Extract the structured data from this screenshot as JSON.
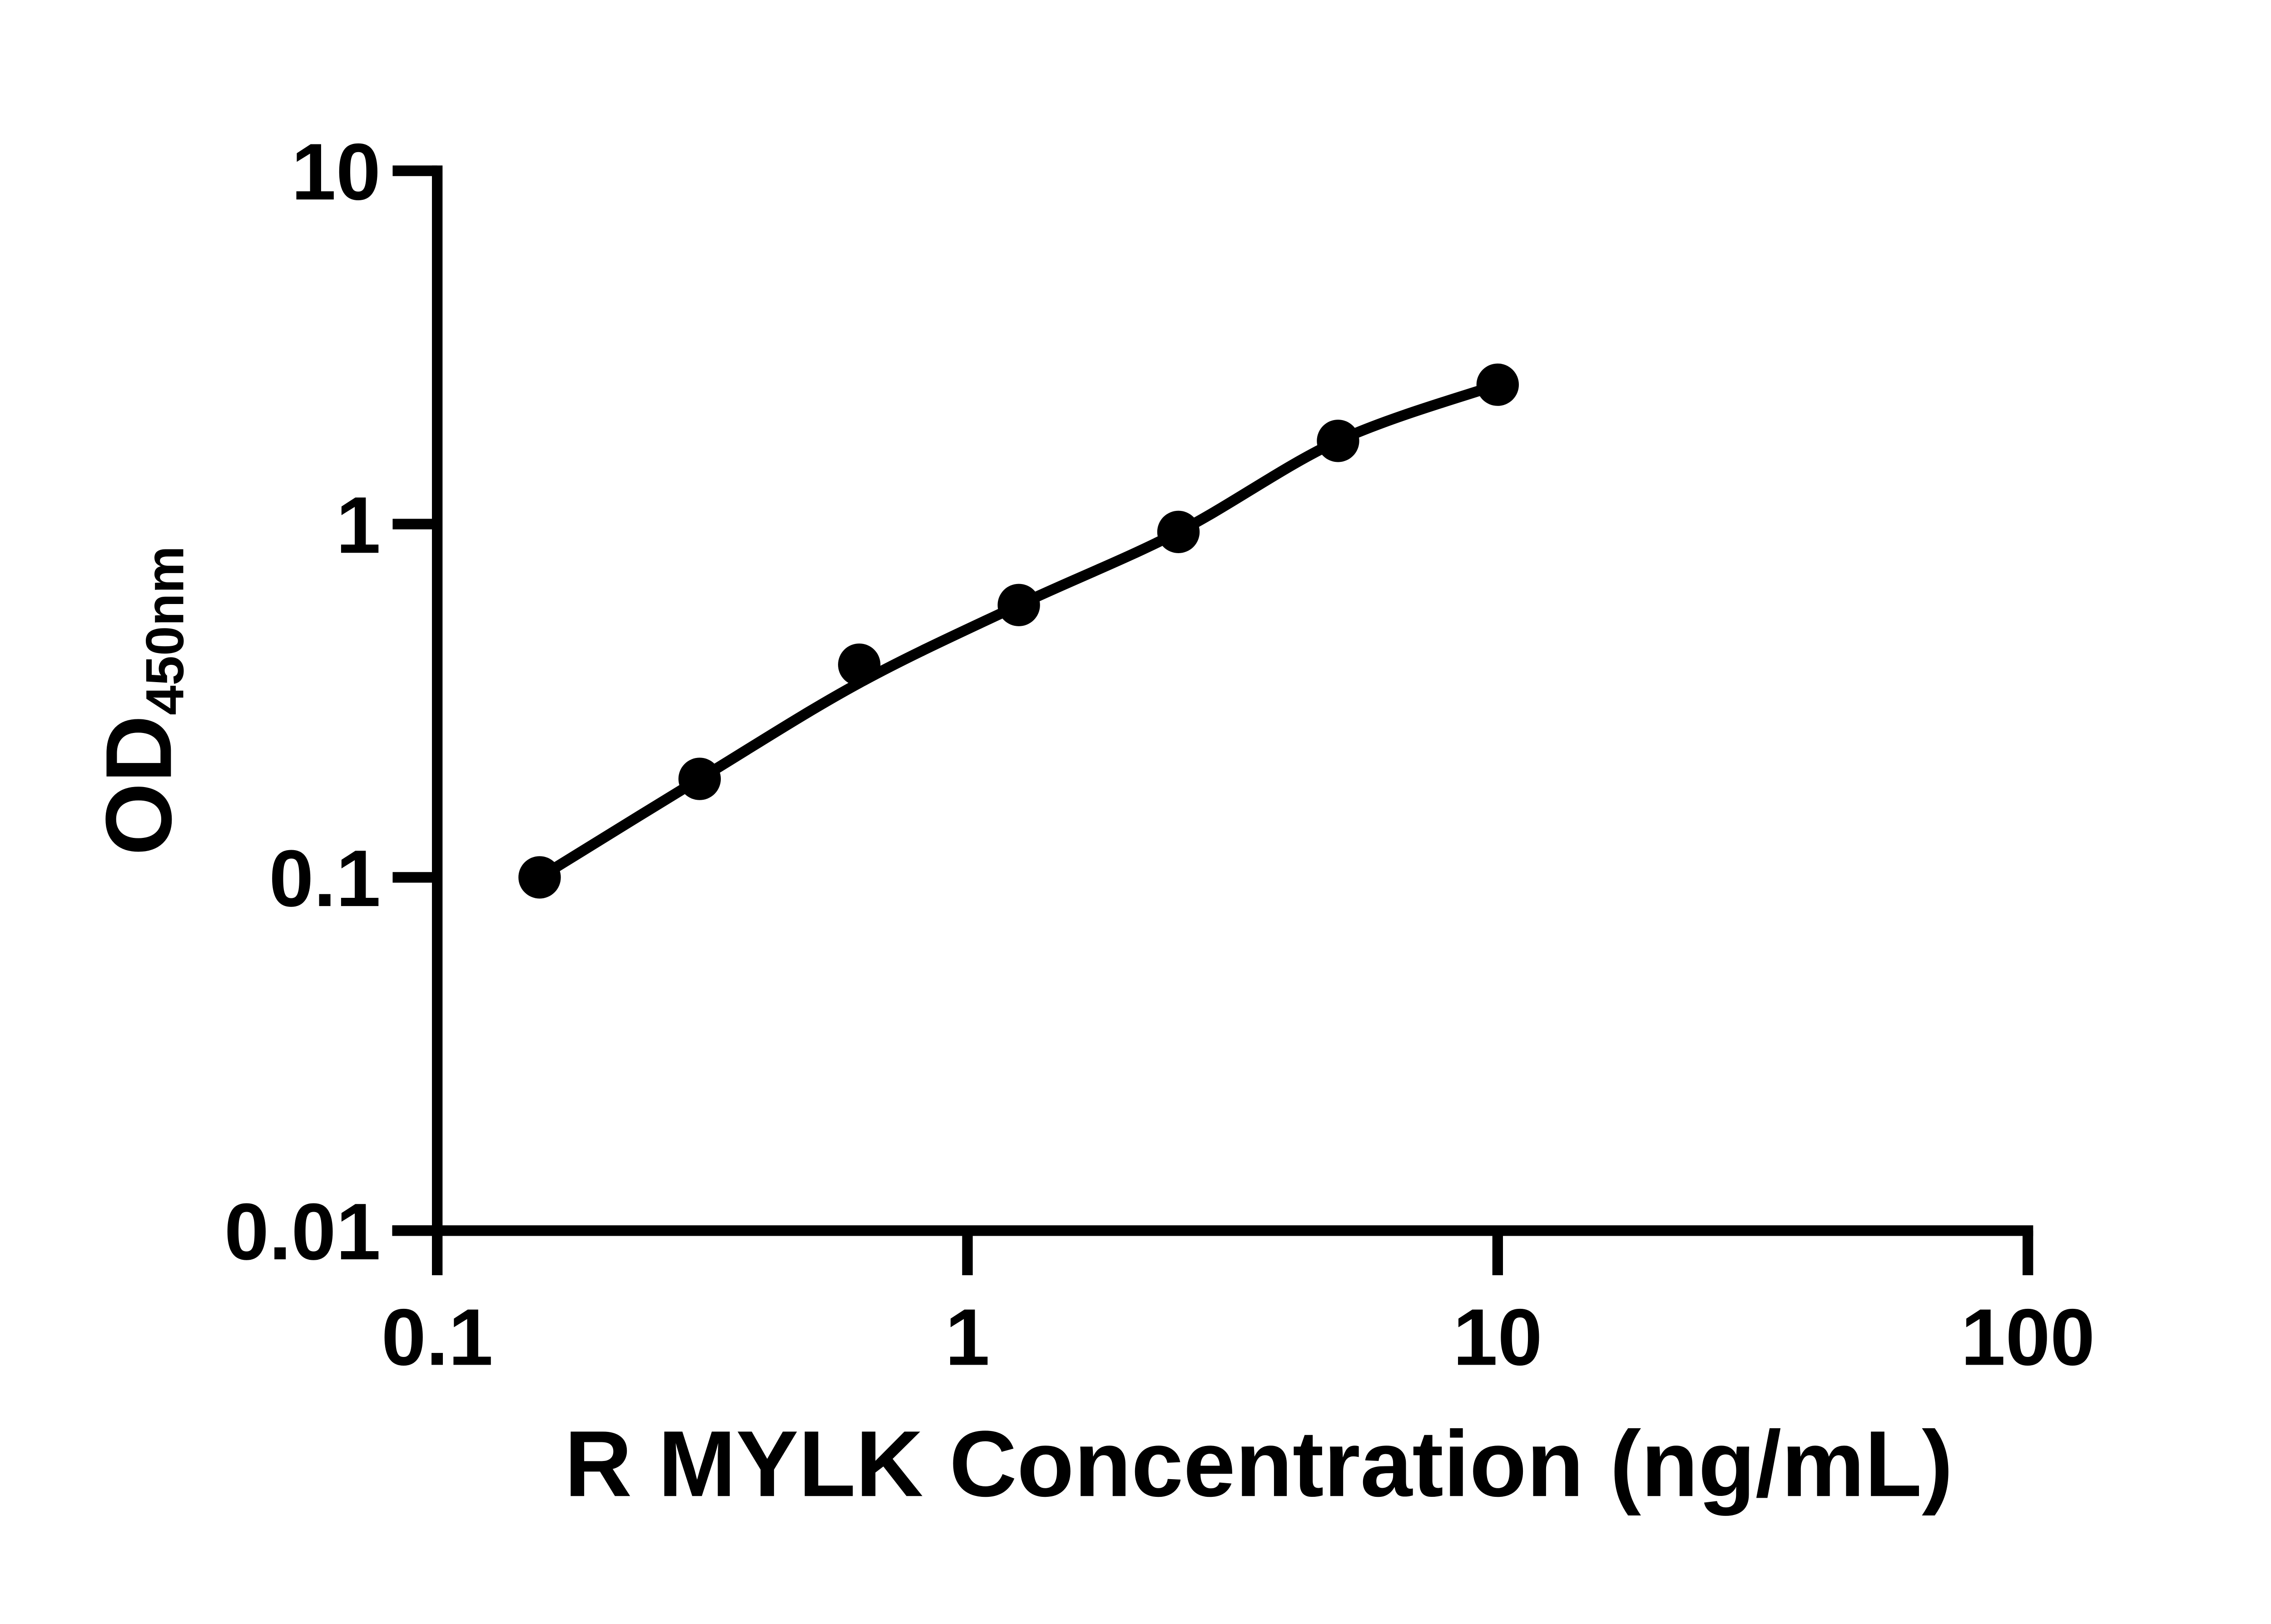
{
  "figure": {
    "background_color": "#ffffff",
    "ink_color": "#000000",
    "description": "ELISA standard curve, log-log scatter plot with fitted line"
  },
  "chart_data": {
    "type": "scatter",
    "title": "",
    "xlabel": "R MYLK Concentration (ng/mL)",
    "ylabel_main": "OD",
    "ylabel_sub": "450nm",
    "x_scale": "log10",
    "y_scale": "log10",
    "xlim": [
      0.1,
      100
    ],
    "ylim": [
      0.01,
      10
    ],
    "x_ticks": [
      0.1,
      1,
      10,
      100
    ],
    "x_tick_labels": [
      "0.1",
      "1",
      "10",
      "100"
    ],
    "y_ticks": [
      0.01,
      0.1,
      1,
      10
    ],
    "y_tick_labels": [
      "0.01",
      "0.1",
      "1",
      "10"
    ],
    "grid": false,
    "legend": "none",
    "marker_color": "#000000",
    "line_color": "#000000",
    "series": [
      {
        "name": "standard-curve-points",
        "marker": "filled-circle",
        "x": [
          0.156,
          0.3125,
          0.625,
          1.25,
          2.5,
          5,
          10
        ],
        "y": [
          0.1,
          0.19,
          0.4,
          0.59,
          0.95,
          1.72,
          2.48
        ]
      }
    ],
    "fit_line": {
      "name": "fitted-curve",
      "x": [
        0.156,
        0.3125,
        0.625,
        1.25,
        2.5,
        5,
        10
      ],
      "y": [
        0.1,
        0.19,
        0.355,
        0.59,
        0.95,
        1.72,
        2.48
      ]
    }
  }
}
